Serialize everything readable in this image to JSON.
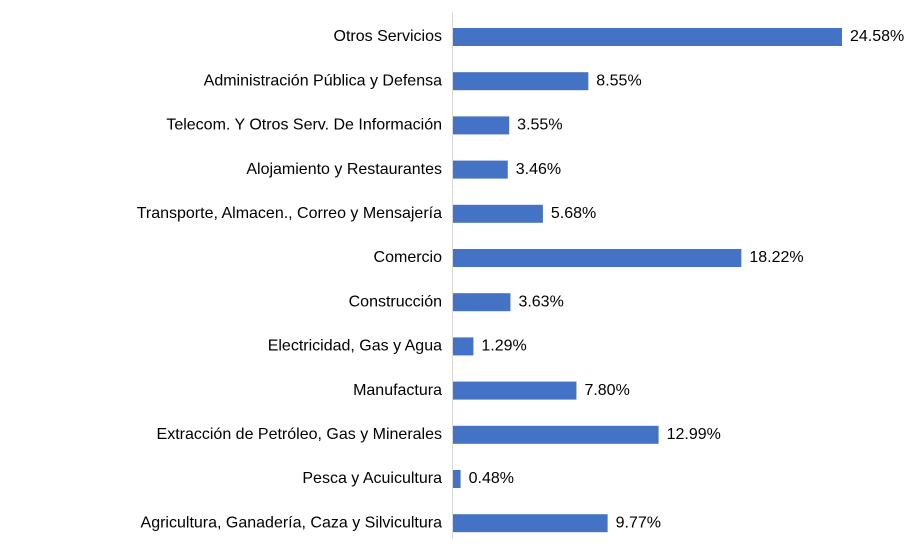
{
  "chart_data": {
    "type": "barh",
    "categories": [
      "Otros Servicios",
      "Administración Pública y Defensa",
      "Telecom. Y Otros Serv. De Información",
      "Alojamiento y Restaurantes",
      "Transporte, Almacen., Correo y Mensajería",
      "Comercio",
      "Construcción",
      "Electricidad, Gas y Agua",
      "Manufactura",
      "Extracción de Petróleo, Gas y Minerales",
      "Pesca y Acuicultura",
      "Agricultura, Ganadería, Caza y Silvicultura"
    ],
    "values": [
      24.58,
      8.55,
      3.55,
      3.46,
      5.68,
      18.22,
      3.63,
      1.29,
      7.8,
      12.99,
      0.48,
      9.77
    ],
    "value_labels": [
      "24.58%",
      "8.55%",
      "3.55%",
      "3.46%",
      "5.68%",
      "18.22%",
      "3.63%",
      "1.29%",
      "7.80%",
      "12.99%",
      "0.48%",
      "9.77%"
    ],
    "color": "#4472c4"
  }
}
